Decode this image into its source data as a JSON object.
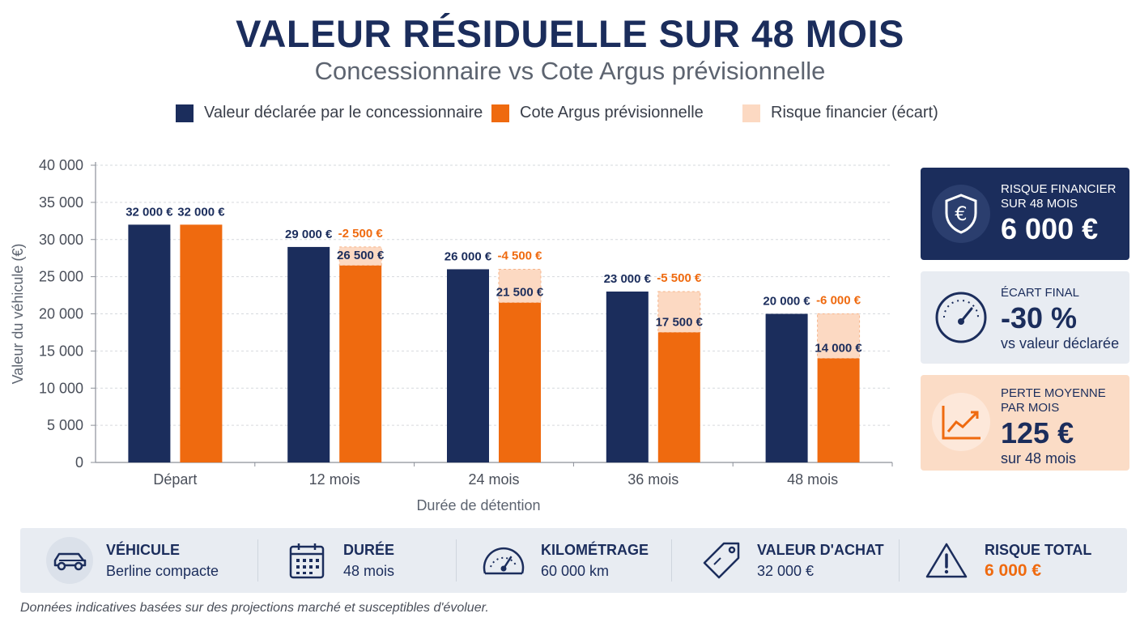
{
  "header": {
    "title": "VALEUR RÉSIDUELLE SUR 48 MOIS",
    "subtitle": "Concessionnaire vs Cote Argus prévisionnelle"
  },
  "colors": {
    "navy": "#1b2d5c",
    "orange": "#ef6a0f",
    "peach": "#fcd9c2",
    "light_panel": "#e8ecf2"
  },
  "legend": [
    {
      "label": "Valeur déclarée par le concessionnaire",
      "color": "#1b2d5c"
    },
    {
      "label": "Cote Argus prévisionnelle",
      "color": "#ef6a0f"
    },
    {
      "label": "Risque financier (écart)",
      "color": "#fcd9c2"
    }
  ],
  "chart_data": {
    "type": "bar",
    "title": "",
    "xlabel": "Durée de détention",
    "ylabel": "Valeur du véhicule (€)",
    "ylim": [
      0,
      40000
    ],
    "yticks": [
      0,
      5000,
      10000,
      15000,
      20000,
      25000,
      30000,
      35000,
      40000
    ],
    "ytick_labels": [
      "0",
      "5 000",
      "10 000",
      "15 000",
      "20 000",
      "25 000",
      "30 000",
      "35 000",
      "40 000"
    ],
    "grid": true,
    "categories": [
      "Départ",
      "12 mois",
      "24 mois",
      "36 mois",
      "48 mois"
    ],
    "series": [
      {
        "name": "Valeur déclarée par le concessionnaire",
        "values": [
          32000,
          29000,
          26000,
          23000,
          20000
        ],
        "labels": [
          "32 000 €",
          "29 000 €",
          "26 000 €",
          "23 000 €",
          "20 000 €"
        ]
      },
      {
        "name": "Cote Argus prévisionnelle",
        "values": [
          32000,
          26500,
          21500,
          17500,
          14000
        ],
        "labels": [
          "32 000 €",
          "26 500 €",
          "21 500 €",
          "17 500 €",
          "14 000 €"
        ]
      },
      {
        "name": "Risque financier (écart)",
        "values": [
          0,
          2500,
          4500,
          5500,
          6000
        ],
        "labels": [
          "",
          "-2 500 €",
          "-4 500 €",
          "-5 500 €",
          "-6 000 €"
        ]
      }
    ]
  },
  "cards": [
    {
      "icon": "euro-shield-icon",
      "label": "RISQUE FINANCIER SUR 48 MOIS",
      "value": "6 000 €",
      "sub": ""
    },
    {
      "icon": "gauge-icon",
      "label": "ÉCART FINAL",
      "value": "-30 %",
      "sub": "vs valeur déclarée"
    },
    {
      "icon": "trend-chart-icon",
      "label": "PERTE MOYENNE PAR MOIS",
      "value": "125 €",
      "sub": "sur 48 mois"
    }
  ],
  "footer": [
    {
      "icon": "car-icon",
      "label": "VÉHICULE",
      "value": "Berline compacte",
      "value_color": "#1b2d5c"
    },
    {
      "icon": "calendar-icon",
      "label": "DURÉE",
      "value": "48 mois",
      "value_color": "#1b2d5c"
    },
    {
      "icon": "speedometer-icon",
      "label": "KILOMÉTRAGE",
      "value": "60 000 km",
      "value_color": "#1b2d5c"
    },
    {
      "icon": "price-tag-icon",
      "label": "VALEUR D'ACHAT",
      "value": "32 000 €",
      "value_color": "#1b2d5c"
    },
    {
      "icon": "warning-icon",
      "label": "RISQUE TOTAL",
      "value": "6 000 €",
      "value_color": "#ef6a0f"
    }
  ],
  "footnote": "Données indicatives basées sur des projections marché et susceptibles d'évoluer."
}
